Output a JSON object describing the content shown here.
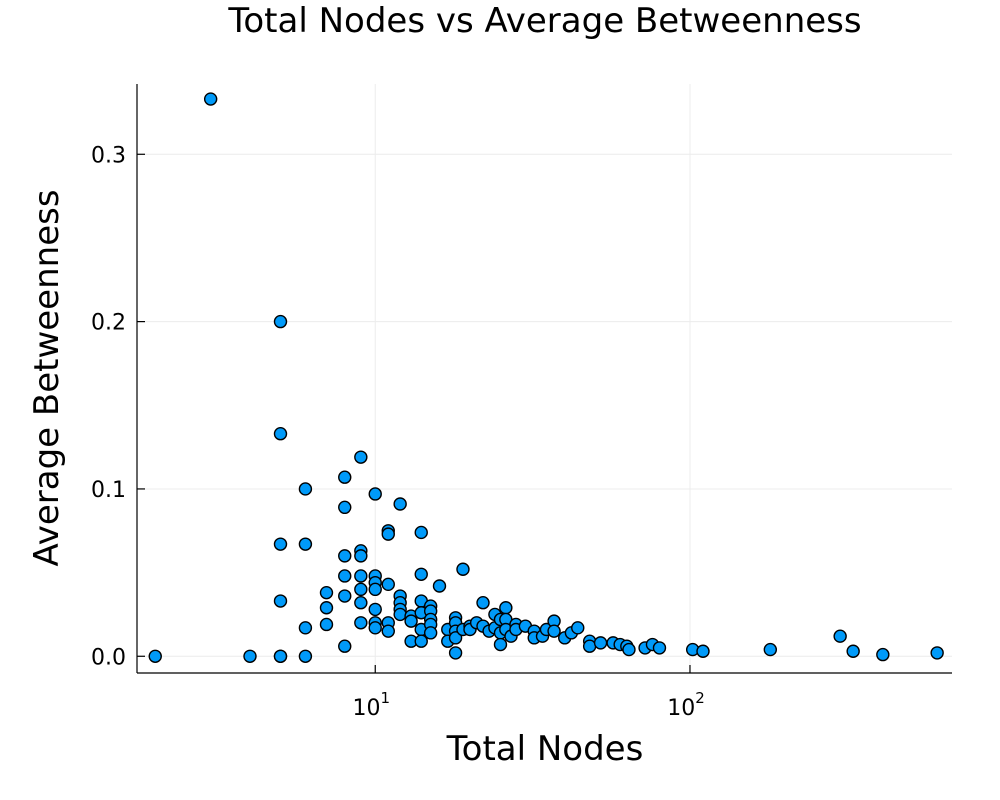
{
  "chart_data": {
    "type": "scatter",
    "title": "Total Nodes vs Average Betweenness",
    "xlabel": "Total Nodes",
    "ylabel": "Average Betweenness",
    "x_scale": "log",
    "xlim": [
      1.75,
      680
    ],
    "ylim": [
      -0.01,
      0.342
    ],
    "x_ticks": [
      {
        "base": "10",
        "exp": "1",
        "value": 10
      },
      {
        "base": "10",
        "exp": "2",
        "value": 100
      }
    ],
    "y_ticks": [
      {
        "label": "0.0",
        "value": 0.0
      },
      {
        "label": "0.1",
        "value": 0.1
      },
      {
        "label": "0.2",
        "value": 0.2
      },
      {
        "label": "0.3",
        "value": 0.3
      }
    ],
    "grid": true,
    "legend": "none",
    "colors": {
      "marker": "#009af9",
      "marker_edge": "#000000",
      "grid": "#ececec"
    },
    "points": [
      [
        2,
        0.0
      ],
      [
        3,
        0.333
      ],
      [
        4,
        0.0
      ],
      [
        5,
        0.2
      ],
      [
        5,
        0.133
      ],
      [
        5,
        0.067
      ],
      [
        5,
        0.033
      ],
      [
        5,
        0.0
      ],
      [
        5,
        0.0
      ],
      [
        6,
        0.1
      ],
      [
        6,
        0.067
      ],
      [
        6,
        0.017
      ],
      [
        6,
        0.0
      ],
      [
        7,
        0.038
      ],
      [
        7,
        0.029
      ],
      [
        7,
        0.019
      ],
      [
        8,
        0.107
      ],
      [
        8,
        0.089
      ],
      [
        8,
        0.06
      ],
      [
        8,
        0.048
      ],
      [
        8,
        0.036
      ],
      [
        8,
        0.006
      ],
      [
        9,
        0.119
      ],
      [
        9,
        0.063
      ],
      [
        9,
        0.06
      ],
      [
        9,
        0.048
      ],
      [
        9,
        0.04
      ],
      [
        9,
        0.032
      ],
      [
        9,
        0.02
      ],
      [
        10,
        0.097
      ],
      [
        10,
        0.048
      ],
      [
        10,
        0.044
      ],
      [
        10,
        0.04
      ],
      [
        10,
        0.028
      ],
      [
        10,
        0.02
      ],
      [
        10,
        0.017
      ],
      [
        11,
        0.075
      ],
      [
        11,
        0.073
      ],
      [
        11,
        0.043
      ],
      [
        11,
        0.02
      ],
      [
        11,
        0.015
      ],
      [
        12,
        0.091
      ],
      [
        12,
        0.036
      ],
      [
        12,
        0.032
      ],
      [
        12,
        0.028
      ],
      [
        12,
        0.025
      ],
      [
        13,
        0.024
      ],
      [
        13,
        0.021
      ],
      [
        13,
        0.009
      ],
      [
        14,
        0.074
      ],
      [
        14,
        0.049
      ],
      [
        14,
        0.033
      ],
      [
        14,
        0.026
      ],
      [
        14,
        0.016
      ],
      [
        14,
        0.009
      ],
      [
        15,
        0.03
      ],
      [
        15,
        0.027
      ],
      [
        15,
        0.022
      ],
      [
        15,
        0.019
      ],
      [
        15,
        0.014
      ],
      [
        16,
        0.042
      ],
      [
        17,
        0.016
      ],
      [
        17,
        0.009
      ],
      [
        18,
        0.023
      ],
      [
        18,
        0.02
      ],
      [
        18,
        0.015
      ],
      [
        18,
        0.011
      ],
      [
        18,
        0.002
      ],
      [
        19,
        0.052
      ],
      [
        19,
        0.016
      ],
      [
        20,
        0.018
      ],
      [
        20,
        0.016
      ],
      [
        21,
        0.02
      ],
      [
        22,
        0.032
      ],
      [
        22,
        0.018
      ],
      [
        23,
        0.015
      ],
      [
        24,
        0.025
      ],
      [
        24,
        0.017
      ],
      [
        25,
        0.022
      ],
      [
        25,
        0.014
      ],
      [
        25,
        0.007
      ],
      [
        26,
        0.029
      ],
      [
        26,
        0.022
      ],
      [
        26,
        0.016
      ],
      [
        27,
        0.012
      ],
      [
        28,
        0.019
      ],
      [
        28,
        0.016
      ],
      [
        30,
        0.018
      ],
      [
        32,
        0.015
      ],
      [
        32,
        0.011
      ],
      [
        34,
        0.012
      ],
      [
        35,
        0.016
      ],
      [
        37,
        0.021
      ],
      [
        37,
        0.015
      ],
      [
        40,
        0.011
      ],
      [
        42,
        0.014
      ],
      [
        44,
        0.017
      ],
      [
        48,
        0.009
      ],
      [
        48,
        0.006
      ],
      [
        52,
        0.008
      ],
      [
        57,
        0.008
      ],
      [
        60,
        0.007
      ],
      [
        63,
        0.006
      ],
      [
        64,
        0.004
      ],
      [
        72,
        0.005
      ],
      [
        76,
        0.007
      ],
      [
        80,
        0.005
      ],
      [
        102,
        0.004
      ],
      [
        110,
        0.003
      ],
      [
        180,
        0.004
      ],
      [
        300,
        0.012
      ],
      [
        330,
        0.003
      ],
      [
        410,
        0.001
      ],
      [
        610,
        0.002
      ]
    ]
  }
}
